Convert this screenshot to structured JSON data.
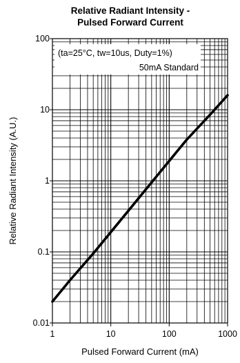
{
  "chart_data": {
    "type": "line",
    "title_line1": "Relative Radiant Intensity -",
    "title_line2": "Pulsed Forward Current",
    "xlabel": "Pulsed Forward Current (mA)",
    "ylabel": "Relative Radiant Intensity (A.U.)",
    "x_scale": "log",
    "y_scale": "log",
    "xlim": [
      1,
      1000
    ],
    "ylim": [
      0.01,
      100
    ],
    "x_ticks": [
      "1",
      "10",
      "100",
      "1000"
    ],
    "y_ticks": [
      "0.01",
      "0.1",
      "1",
      "10",
      "100"
    ],
    "grid": true,
    "annotation_line1": "(ta=25°C, tw=10us, Duty=1%)",
    "annotation_line2": "50mA Standard",
    "series": [
      {
        "x": [
          1,
          2,
          5,
          10,
          20,
          50,
          100,
          200,
          500,
          1000
        ],
        "y": [
          0.02,
          0.04,
          0.095,
          0.19,
          0.38,
          0.95,
          1.9,
          3.8,
          8.5,
          16
        ]
      }
    ]
  }
}
